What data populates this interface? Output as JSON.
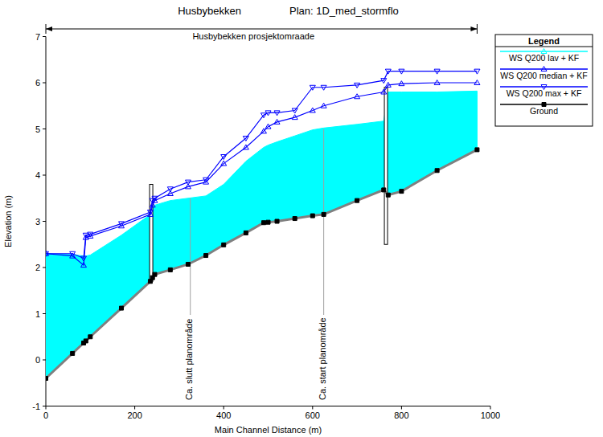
{
  "chart_data": {
    "type": "line",
    "title": "Husbybekken",
    "subtitle": "Plan: 1D_med_stormflo",
    "x_label": "Main Channel Distance (m)",
    "y_label": "Elevation (m)",
    "legend_title": "Legend",
    "x": [
      0,
      60,
      85,
      90,
      100,
      170,
      235,
      240,
      245,
      280,
      320,
      360,
      400,
      450,
      490,
      500,
      520,
      560,
      600,
      625,
      700,
      760,
      770,
      800,
      880,
      970
    ],
    "series": [
      {
        "name": "WS  Q200 lav + KF",
        "type": "area",
        "color": "#00ffff",
        "marker": "triangle-up",
        "values": [
          2.3,
          2.28,
          2.25,
          2.25,
          2.27,
          2.7,
          3.15,
          3.3,
          3.35,
          3.45,
          3.5,
          3.55,
          3.8,
          4.3,
          4.6,
          4.65,
          4.72,
          4.85,
          4.98,
          5.02,
          5.1,
          5.17,
          5.8,
          5.8,
          5.8,
          5.82
        ]
      },
      {
        "name": "WS  Q200 median + KF",
        "type": "line",
        "color": "#0000ff",
        "marker": "triangle-up",
        "values": [
          2.3,
          2.25,
          2.05,
          2.65,
          2.68,
          2.9,
          3.15,
          3.35,
          3.45,
          3.6,
          3.75,
          3.85,
          4.25,
          4.6,
          4.95,
          5.05,
          5.15,
          5.25,
          5.4,
          5.5,
          5.7,
          5.8,
          5.95,
          5.98,
          6.0,
          6.0
        ]
      },
      {
        "name": "WS  Q200 max + KF",
        "type": "line",
        "color": "#0000ff",
        "marker": "triangle-down",
        "values": [
          2.3,
          2.3,
          2.2,
          2.7,
          2.72,
          2.95,
          3.2,
          3.45,
          3.5,
          3.7,
          3.85,
          3.9,
          4.4,
          4.8,
          5.3,
          5.35,
          5.35,
          5.4,
          5.9,
          5.9,
          5.95,
          6.05,
          6.25,
          6.25,
          6.25,
          6.25
        ]
      },
      {
        "name": "Ground",
        "type": "line",
        "color": "#808080",
        "marker": "square",
        "values": [
          -0.4,
          0.14,
          0.365,
          0.41,
          0.5,
          1.12,
          1.7,
          1.78,
          1.85,
          1.95,
          2.07,
          2.26,
          2.49,
          2.75,
          2.97,
          2.98,
          3.0,
          3.06,
          3.12,
          3.15,
          3.45,
          3.68,
          3.57,
          3.65,
          4.1,
          4.55
        ]
      }
    ],
    "xlim": [
      0,
      1000
    ],
    "ylim": [
      -1,
      7
    ],
    "xticks": [
      0,
      200,
      400,
      600,
      800,
      1000
    ],
    "yticks": [
      -1,
      0,
      1,
      2,
      3,
      4,
      5,
      6,
      7
    ],
    "grid": false,
    "legend": "top-right",
    "reach": {
      "text": "Husbybekken prosjektomraade",
      "start": 0,
      "end": 970
    },
    "structures": [
      {
        "x": 237,
        "low": 1.7,
        "high": 3.8
      },
      {
        "x": 765,
        "low": 2.5,
        "high": 5.9
      }
    ],
    "annotations": [
      {
        "text": "Ca. slutt planområde",
        "x": 325,
        "y": 3.5
      },
      {
        "text": "Ca. start planområde",
        "x": 625,
        "y": 5.0
      }
    ]
  }
}
